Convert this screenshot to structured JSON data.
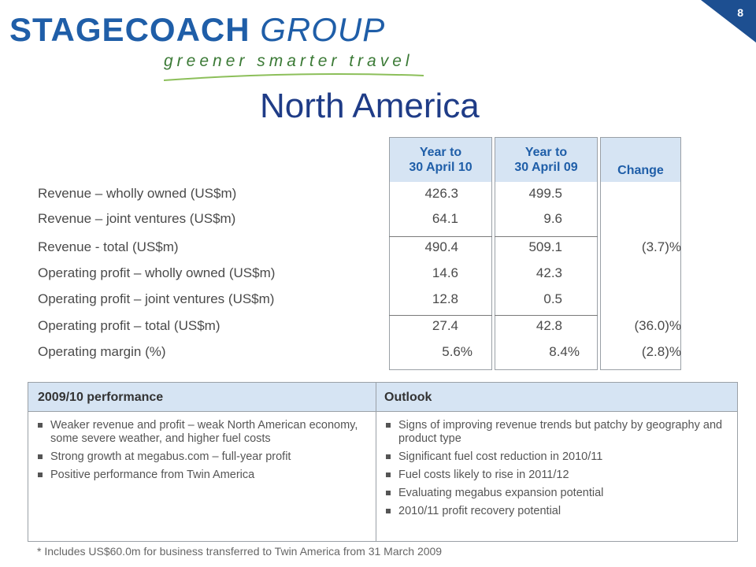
{
  "logo": {
    "main_bold": "STAGECOACH",
    "main_light": "GROUP",
    "tagline": "greener smarter travel"
  },
  "page_number": "8",
  "title": "North America",
  "columns": {
    "col1": [
      "Year to",
      "30 April 10"
    ],
    "col2": [
      "Year to",
      "30 April 09"
    ],
    "col3": "Change"
  },
  "rows": [
    {
      "label": "Revenue – wholly owned (US$m)",
      "v1": "426.3",
      "v2": "499.5",
      "change": ""
    },
    {
      "label": "Revenue – joint ventures (US$m)",
      "v1": "64.1",
      "v2": "9.6",
      "change": ""
    },
    {
      "label": "Revenue - total (US$m)",
      "v1": "490.4",
      "v2": "509.1",
      "change": "(3.7)%"
    },
    {
      "label": "Operating profit – wholly owned (US$m)",
      "v1": "14.6",
      "v2": "42.3",
      "change": ""
    },
    {
      "label": "Operating profit – joint ventures (US$m)",
      "v1": "12.8",
      "v2": "0.5",
      "change": ""
    },
    {
      "label": "Operating profit – total (US$m)",
      "v1": "27.4",
      "v2": "42.8",
      "change": "(36.0)%"
    },
    {
      "label": "Operating margin (%)",
      "v1": "5.6%",
      "v2": "8.4%",
      "change": "(2.8)%"
    }
  ],
  "performance": {
    "heading": "2009/10 performance",
    "bullets": [
      "Weaker revenue and profit – weak North American economy, some severe weather, and higher fuel costs",
      "Strong growth at megabus.com – full-year profit",
      "Positive performance from Twin America"
    ]
  },
  "outlook": {
    "heading": "Outlook",
    "bullets": [
      "Signs of improving revenue trends but patchy by geography and product type",
      "Significant fuel cost reduction in 2010/11",
      "Fuel costs likely to rise in 2011/12",
      "Evaluating megabus expansion potential",
      "2010/11 profit recovery potential"
    ]
  },
  "footnote": "*   Includes US$60.0m for business transferred to Twin America from 31 March 2009",
  "colors": {
    "brand_blue": "#1f5ea8",
    "title_navy": "#1f3c87",
    "tagline_green": "#3b7a36",
    "header_fill": "#d6e4f3",
    "page_badge": "#1d4f91"
  }
}
